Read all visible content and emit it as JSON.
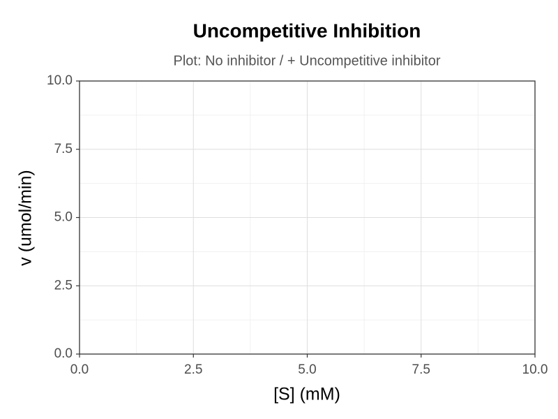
{
  "chart_data": {
    "type": "line",
    "title": "Uncompetitive Inhibition",
    "subtitle": "Plot: No inhibitor / + Uncompetitive inhibitor",
    "x_label": "[S] (mM)",
    "y_label": "v (umol/min)",
    "xlim": [
      0,
      10
    ],
    "ylim": [
      0,
      10
    ],
    "xticks": [
      {
        "value": 0,
        "label": "0.0"
      },
      {
        "value": 2.5,
        "label": "2.5"
      },
      {
        "value": 5,
        "label": "5.0"
      },
      {
        "value": 7.5,
        "label": "7.5"
      },
      {
        "value": 10,
        "label": "10.0"
      }
    ],
    "yticks": [
      {
        "value": 0,
        "label": "0.0"
      },
      {
        "value": 2.5,
        "label": "2.5"
      },
      {
        "value": 5,
        "label": "5.0"
      },
      {
        "value": 7.5,
        "label": "7.5"
      },
      {
        "value": 10,
        "label": "10.0"
      }
    ],
    "grid": true,
    "minor_grid": true
  }
}
